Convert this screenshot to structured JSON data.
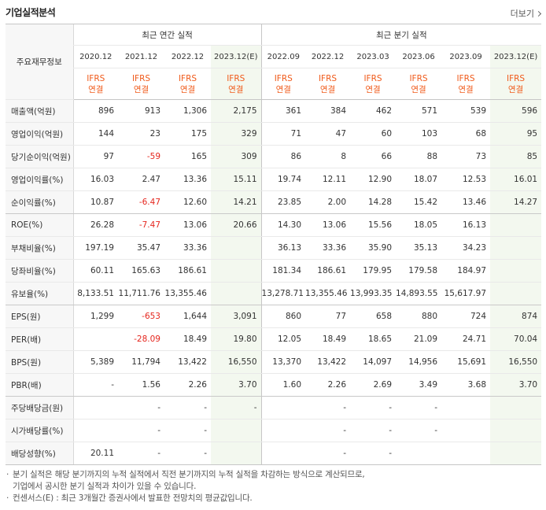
{
  "header": {
    "title": "기업실적분석",
    "more_label": "더보기"
  },
  "table": {
    "corner_label": "주요재무정보",
    "annual_group": "최근 연간 실적",
    "quarter_group": "최근 분기 실적",
    "annual_periods": [
      "2020.12",
      "2021.12",
      "2022.12",
      "2023.12(E)"
    ],
    "quarter_periods": [
      "2022.09",
      "2022.12",
      "2023.03",
      "2023.06",
      "2023.09",
      "2023.12(E)"
    ],
    "basis_line1": "IFRS",
    "basis_line2": "연결",
    "rows": [
      {
        "label": "매출액(억원)",
        "values": [
          "896",
          "913",
          "1,306",
          "2,175",
          "361",
          "384",
          "462",
          "571",
          "539",
          "596"
        ]
      },
      {
        "label": "영업이익(억원)",
        "values": [
          "144",
          "23",
          "175",
          "329",
          "71",
          "47",
          "60",
          "103",
          "68",
          "95"
        ]
      },
      {
        "label": "당기순이익(억원)",
        "values": [
          "97",
          "-59",
          "165",
          "309",
          "86",
          "8",
          "66",
          "88",
          "73",
          "85"
        ]
      },
      {
        "label": "영업이익률(%)",
        "values": [
          "16.03",
          "2.47",
          "13.36",
          "15.11",
          "19.74",
          "12.11",
          "12.90",
          "18.07",
          "12.53",
          "16.01"
        ]
      },
      {
        "label": "순이익률(%)",
        "values": [
          "10.87",
          "-6.47",
          "12.60",
          "14.21",
          "23.85",
          "2.00",
          "14.28",
          "15.42",
          "13.46",
          "14.27"
        ]
      },
      {
        "label": "ROE(%)",
        "values": [
          "26.28",
          "-7.47",
          "13.06",
          "20.66",
          "14.30",
          "13.06",
          "15.56",
          "18.05",
          "16.13",
          ""
        ]
      },
      {
        "label": "부채비율(%)",
        "values": [
          "197.19",
          "35.47",
          "33.36",
          "",
          "36.13",
          "33.36",
          "35.90",
          "35.13",
          "34.23",
          ""
        ]
      },
      {
        "label": "당좌비율(%)",
        "values": [
          "60.11",
          "165.63",
          "186.61",
          "",
          "181.34",
          "186.61",
          "179.95",
          "179.58",
          "184.97",
          ""
        ]
      },
      {
        "label": "유보율(%)",
        "values": [
          "8,133.51",
          "11,711.76",
          "13,355.46",
          "",
          "13,278.71",
          "13,355.46",
          "13,993.35",
          "14,893.55",
          "15,617.97",
          ""
        ]
      },
      {
        "label": "EPS(원)",
        "values": [
          "1,299",
          "-653",
          "1,644",
          "3,091",
          "860",
          "77",
          "658",
          "880",
          "724",
          "874"
        ]
      },
      {
        "label": "PER(배)",
        "values": [
          "",
          "-28.09",
          "18.49",
          "19.80",
          "12.05",
          "18.49",
          "18.65",
          "21.09",
          "24.71",
          "70.04"
        ]
      },
      {
        "label": "BPS(원)",
        "values": [
          "5,389",
          "11,794",
          "13,422",
          "16,550",
          "13,370",
          "13,422",
          "14,097",
          "14,956",
          "15,691",
          "16,550"
        ]
      },
      {
        "label": "PBR(배)",
        "values": [
          "-",
          "1.56",
          "2.26",
          "3.70",
          "1.60",
          "2.26",
          "2.69",
          "3.49",
          "3.68",
          "3.70"
        ]
      },
      {
        "label": "주당배당금(원)",
        "values": [
          "",
          "-",
          "-",
          "-",
          "",
          "-",
          "-",
          "-",
          "",
          ""
        ]
      },
      {
        "label": "시가배당률(%)",
        "values": [
          "",
          "-",
          "-",
          "",
          "",
          "-",
          "-",
          "-",
          "",
          ""
        ]
      },
      {
        "label": "배당성향(%)",
        "values": [
          "20.11",
          "-",
          "-",
          "",
          "",
          "-",
          "-",
          "",
          "",
          ""
        ]
      }
    ]
  },
  "notes": {
    "note1_line1": "분기 실적은 해당 분기까지의 누적 실적에서 직전 분기까지의 누적 실적을 차감하는 방식으로 계산되므로,",
    "note1_line2": "기업에서 공시한 분기 실적과 차이가 있을 수 있습니다.",
    "note2": "컨센서스(E) : 최근 3개월간 증권사에서 발표한 전망치의 평균값입니다.",
    "bullet": "·"
  }
}
